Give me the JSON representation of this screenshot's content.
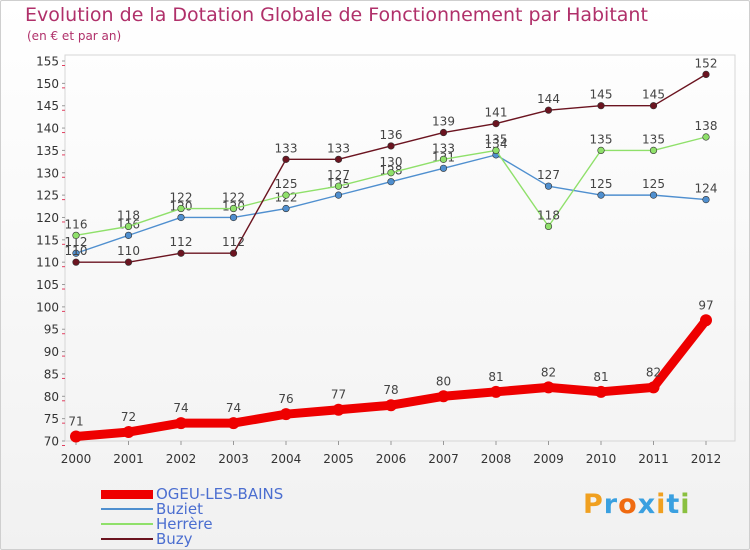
{
  "chart_data": {
    "type": "line",
    "title": "Evolution de la Dotation Globale de Fonctionnement par Habitant",
    "subtitle": "(en € et par an)",
    "x": [
      "2000",
      "2001",
      "2002",
      "2003",
      "2004",
      "2005",
      "2006",
      "2007",
      "2008",
      "2009",
      "2010",
      "2011",
      "2012"
    ],
    "ylim": [
      70,
      155
    ],
    "yticks": [
      70,
      75,
      80,
      85,
      90,
      95,
      100,
      105,
      110,
      115,
      120,
      125,
      130,
      135,
      140,
      145,
      150,
      155
    ],
    "grid": false,
    "legend_position": "bottom-left",
    "series": [
      {
        "name": "OGEU-LES-BAINS",
        "color": "#ee0000",
        "values": [
          71,
          72,
          74,
          74,
          76,
          77,
          78,
          80,
          81,
          82,
          81,
          82,
          97
        ]
      },
      {
        "name": "Buziet",
        "color": "#4f8fcf",
        "values": [
          112,
          116,
          120,
          120,
          122,
          125,
          128,
          131,
          134,
          127,
          125,
          125,
          124
        ]
      },
      {
        "name": "Herrère",
        "color": "#8fe06a",
        "values": [
          116,
          118,
          122,
          122,
          125,
          127,
          130,
          133,
          135,
          118,
          135,
          135,
          138
        ]
      },
      {
        "name": "Buzy",
        "color": "#6b1420",
        "values": [
          110,
          110,
          112,
          112,
          133,
          133,
          136,
          139,
          141,
          144,
          145,
          145,
          152
        ]
      }
    ]
  },
  "branding": {
    "logo_text": "Proxiti",
    "letter_colors": [
      "#f0a020",
      "#3aa0e0",
      "#f06a10",
      "#3aa0e0",
      "#f0a020",
      "#3aa0e0",
      "#8ac040"
    ]
  }
}
